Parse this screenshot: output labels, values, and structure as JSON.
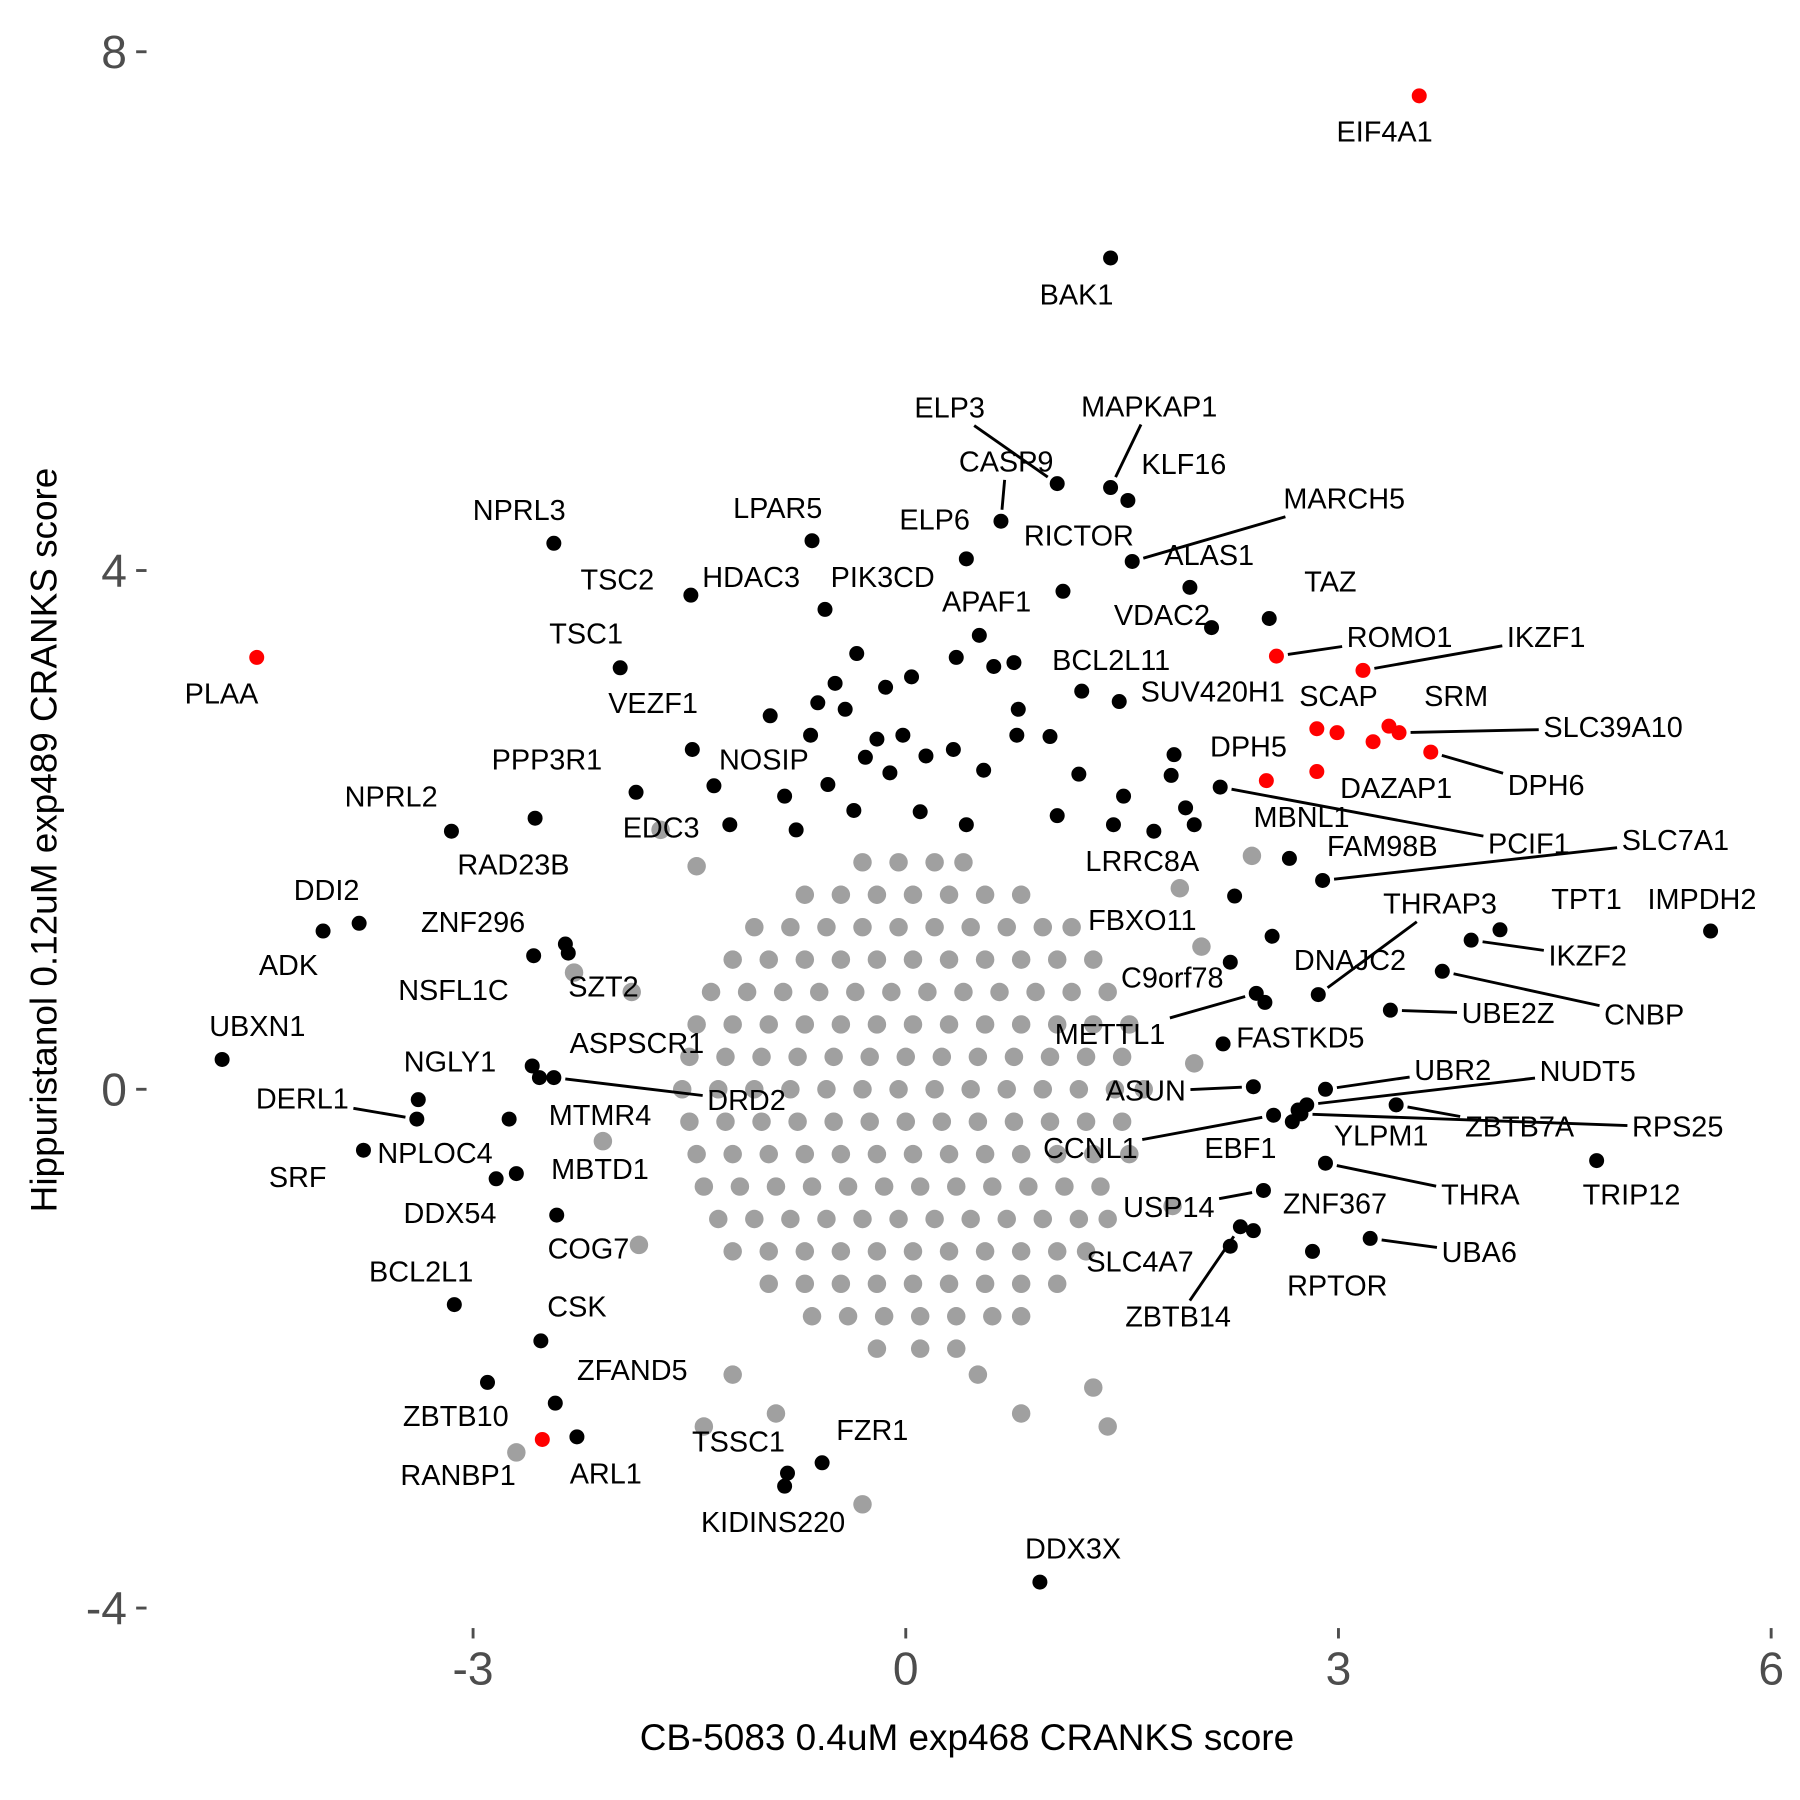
{
  "chart_data": {
    "type": "scatter",
    "x_label": "CB-5083 0.4uM exp468 CRANKS score",
    "y_label": "Hippuristanol 0.12uM exp489 CRANKS score",
    "xlim": [
      -5.3,
      6.1
    ],
    "ylim": [
      -4.15,
      8.15
    ],
    "xticks": [
      -3,
      0,
      3,
      6
    ],
    "yticks": [
      -4,
      0,
      4,
      8
    ],
    "series": [
      {
        "color": "#a0a0a0",
        "x": [
          -0.3,
          -0.05,
          0.2,
          0.4,
          -0.7,
          -0.45,
          -0.2,
          0.05,
          0.3,
          0.55,
          0.8,
          -1.05,
          -0.8,
          -0.55,
          -0.3,
          -0.05,
          0.2,
          0.45,
          0.7,
          0.95,
          1.15,
          -1.2,
          -0.95,
          -0.7,
          -0.45,
          -0.2,
          0.05,
          0.3,
          0.55,
          0.8,
          1.05,
          1.3,
          -1.35,
          -1.1,
          -0.85,
          -0.6,
          -0.35,
          -0.1,
          0.15,
          0.4,
          0.65,
          0.9,
          1.15,
          1.4,
          -1.45,
          -1.2,
          -0.95,
          -0.7,
          -0.45,
          -0.2,
          0.05,
          0.3,
          0.55,
          0.8,
          1.05,
          1.3,
          1.55,
          -1.5,
          -1.25,
          -1.0,
          -0.75,
          -0.5,
          -0.25,
          0,
          0.25,
          0.5,
          0.75,
          1.0,
          1.25,
          1.5,
          -1.55,
          -1.3,
          -1.05,
          -0.8,
          -0.55,
          -0.3,
          -0.05,
          0.2,
          0.45,
          0.7,
          0.95,
          1.2,
          1.45,
          1.65,
          -1.5,
          -1.25,
          -1.0,
          -0.75,
          -0.5,
          -0.25,
          0,
          0.25,
          0.5,
          0.75,
          1.0,
          1.25,
          1.5,
          -1.45,
          -1.2,
          -0.95,
          -0.7,
          -0.45,
          -0.2,
          0.05,
          0.3,
          0.55,
          0.8,
          1.05,
          1.3,
          1.55,
          -1.4,
          -1.15,
          -0.9,
          -0.65,
          -0.4,
          -0.15,
          0.1,
          0.35,
          0.6,
          0.85,
          1.1,
          1.35,
          -1.3,
          -1.05,
          -0.8,
          -0.55,
          -0.3,
          -0.05,
          0.2,
          0.45,
          0.7,
          0.95,
          1.2,
          1.4,
          -1.2,
          -0.95,
          -0.7,
          -0.45,
          -0.2,
          0.05,
          0.3,
          0.55,
          0.8,
          1.05,
          1.25,
          -0.95,
          -0.7,
          -0.45,
          -0.2,
          0.05,
          0.3,
          0.55,
          0.8,
          1.05,
          -0.65,
          -0.4,
          -0.15,
          0.1,
          0.35,
          0.6,
          0.8,
          -0.2,
          0.1,
          0.35,
          -1.45,
          1.9,
          2.05,
          -1.9,
          -2.1,
          -1.85,
          1.85,
          2.0,
          -1.2,
          -0.9,
          0.5,
          0.8,
          -2.7,
          -0.3,
          1.4,
          -2.3,
          2.4,
          -1.7,
          1.3,
          -1.4
        ],
        "y": [
          1.75,
          1.75,
          1.75,
          1.75,
          1.5,
          1.5,
          1.5,
          1.5,
          1.5,
          1.5,
          1.5,
          1.25,
          1.25,
          1.25,
          1.25,
          1.25,
          1.25,
          1.25,
          1.25,
          1.25,
          1.25,
          1,
          1,
          1,
          1,
          1,
          1,
          1,
          1,
          1,
          1,
          1,
          0.75,
          0.75,
          0.75,
          0.75,
          0.75,
          0.75,
          0.75,
          0.75,
          0.75,
          0.75,
          0.75,
          0.75,
          0.5,
          0.5,
          0.5,
          0.5,
          0.5,
          0.5,
          0.5,
          0.5,
          0.5,
          0.5,
          0.5,
          0.5,
          0.5,
          0.25,
          0.25,
          0.25,
          0.25,
          0.25,
          0.25,
          0.25,
          0.25,
          0.25,
          0.25,
          0.25,
          0.25,
          0.25,
          0,
          0,
          0,
          0,
          0,
          0,
          0,
          0,
          0,
          0,
          0,
          0,
          0,
          0,
          -0.25,
          -0.25,
          -0.25,
          -0.25,
          -0.25,
          -0.25,
          -0.25,
          -0.25,
          -0.25,
          -0.25,
          -0.25,
          -0.25,
          -0.25,
          -0.5,
          -0.5,
          -0.5,
          -0.5,
          -0.5,
          -0.5,
          -0.5,
          -0.5,
          -0.5,
          -0.5,
          -0.5,
          -0.5,
          -0.5,
          -0.75,
          -0.75,
          -0.75,
          -0.75,
          -0.75,
          -0.75,
          -0.75,
          -0.75,
          -0.75,
          -0.75,
          -0.75,
          -0.75,
          -1,
          -1,
          -1,
          -1,
          -1,
          -1,
          -1,
          -1,
          -1,
          -1,
          -1,
          -1,
          -1.25,
          -1.25,
          -1.25,
          -1.25,
          -1.25,
          -1.25,
          -1.25,
          -1.25,
          -1.25,
          -1.25,
          -1.25,
          -1.5,
          -1.5,
          -1.5,
          -1.5,
          -1.5,
          -1.5,
          -1.5,
          -1.5,
          -1.5,
          -1.75,
          -1.75,
          -1.75,
          -1.75,
          -1.75,
          -1.75,
          -1.75,
          -2,
          -2,
          -2,
          1.72,
          1.55,
          1.1,
          0.75,
          -0.4,
          -1.2,
          -0.9,
          0.2,
          -2.2,
          -2.5,
          -2.2,
          -2.5,
          -2.8,
          -3.2,
          -2.6,
          0.9,
          1.8,
          2.0,
          -2.3,
          -2.6
        ]
      },
      {
        "color": "#000000",
        "labels": [
          "BAK1",
          "ELP3",
          "MAPKAP1",
          "KLF16",
          "CASP9",
          "RICTOR",
          "ELP6",
          "MARCH5",
          "ALAS1",
          "VDAC2",
          "TAZ",
          "NPRL3",
          "LPAR5",
          "TSC2",
          "HDAC3",
          "PIK3CD",
          "APAF1",
          "TSC1",
          "VEZF1",
          "NOSIP",
          "PPP3R1",
          "NPRL2",
          "RAD23B",
          "EDC3",
          "DDI2",
          "ADK",
          "ZNF296",
          "NSFL1C",
          "SZT2",
          "UBXN1",
          "NGLY1",
          "ASPSCR1",
          "DRD2",
          "MTMR4",
          "DERL1",
          "NPLOC4",
          "SRF",
          "DDX54",
          "MBTD1",
          "COG7",
          "CSK",
          "ZFAND5",
          "BCL2L1",
          "ZBTB10",
          "ARL1",
          "TSSC1",
          "KIDINS220",
          "FZR1",
          "DDX3X",
          "BCL2L11",
          "SUV420H1",
          "DPH5",
          "PCIF1",
          "FAM98B",
          "SLC7A1",
          "LRRC8A",
          "FBXO11",
          "THRAP3",
          "DNAJC2",
          "TPT1",
          "IMPDH2",
          "IKZF2",
          "CNBP",
          "C9orf78",
          "METTL1",
          "FASTKD5",
          "UBE2Z",
          "ASUN",
          "UBR2",
          "NUDT5",
          "ZBTB7A",
          "RPS25",
          "CCNL1",
          "EBF1",
          "YLPM1",
          "THRA",
          "TRIP12",
          "USP14",
          "ZNF367",
          "SLC4A7",
          "ZBTB14",
          "RPTOR",
          "UBA6",
          null,
          null,
          null,
          null,
          null,
          null,
          null,
          null,
          null,
          null,
          null,
          null,
          null,
          null,
          null,
          null,
          null,
          null,
          null,
          null,
          null,
          null,
          null,
          null,
          null,
          null,
          null,
          null,
          null,
          null,
          null,
          null,
          null,
          null
        ],
        "x": [
          1.42,
          1.05,
          1.42,
          1.54,
          0.66,
          1.09,
          0.42,
          1.57,
          1.97,
          2.12,
          2.52,
          -2.44,
          -0.65,
          -1.49,
          -0.56,
          -0.34,
          0.51,
          -1.98,
          -1.48,
          -1.33,
          -1.87,
          -3.15,
          -2.57,
          -1.22,
          -3.79,
          -4.04,
          -2.36,
          -2.58,
          -2.34,
          -4.74,
          -3.38,
          -2.59,
          -2.44,
          -2.54,
          -3.39,
          -2.75,
          -3.76,
          -2.84,
          -2.7,
          -2.42,
          -2.53,
          -2.43,
          -3.13,
          -2.9,
          -2.28,
          -0.82,
          -0.84,
          -0.58,
          0.93,
          1.22,
          1.48,
          1.86,
          2.18,
          2.66,
          2.89,
          2.28,
          2.54,
          2.86,
          2.49,
          4.12,
          5.58,
          3.92,
          3.72,
          2.25,
          2.43,
          2.2,
          3.36,
          2.41,
          2.91,
          2.78,
          3.4,
          2.74,
          2.55,
          2.68,
          2.72,
          2.91,
          4.79,
          2.48,
          2.41,
          2.25,
          2.32,
          2.82,
          3.22,
          0.35,
          0.75,
          0.61,
          0.04,
          -0.14,
          -0.49,
          -0.61,
          -0.94,
          -0.42,
          -0.2,
          -0.02,
          -0.11,
          -0.28,
          -0.66,
          0.14,
          0.33,
          0.54,
          0.77,
          1.0,
          1.2,
          1.51,
          1.05,
          1.44,
          1.72,
          2.0,
          -0.84,
          -0.54,
          -0.36,
          0.1,
          0.42,
          0.78,
          1.84,
          1.94,
          -0.76
        ],
        "y": [
          6.41,
          4.67,
          4.64,
          4.54,
          4.38,
          3.84,
          4.09,
          4.07,
          3.87,
          3.56,
          3.63,
          4.21,
          4.23,
          3.81,
          3.7,
          3.36,
          3.5,
          3.25,
          2.62,
          2.34,
          2.29,
          1.99,
          2.09,
          2.04,
          1.28,
          1.22,
          1.12,
          1.03,
          1.05,
          0.23,
          -0.08,
          0.18,
          0.09,
          0.09,
          -0.23,
          -0.23,
          -0.47,
          -0.69,
          -0.65,
          -0.97,
          -1.94,
          -2.42,
          -1.66,
          -2.26,
          -2.68,
          -2.96,
          -3.06,
          -2.88,
          -3.8,
          3.07,
          2.99,
          2.58,
          2.33,
          1.78,
          1.61,
          1.49,
          1.18,
          0.73,
          0.67,
          1.23,
          1.22,
          1.15,
          0.91,
          0.98,
          0.74,
          0.35,
          0.61,
          0.02,
          0.0,
          -0.12,
          -0.12,
          -0.19,
          -0.2,
          -0.25,
          -0.16,
          -0.57,
          -0.55,
          -0.78,
          -1.09,
          -1.21,
          -1.06,
          -1.25,
          -1.15,
          3.33,
          3.29,
          3.26,
          3.18,
          3.1,
          3.13,
          2.98,
          2.88,
          2.93,
          2.7,
          2.73,
          2.44,
          2.56,
          2.73,
          2.57,
          2.62,
          2.46,
          2.73,
          2.72,
          2.43,
          2.26,
          2.11,
          2.04,
          1.99,
          2.04,
          2.26,
          2.35,
          2.15,
          2.14,
          2.04,
          2.93,
          2.42,
          2.17,
          2.0
        ]
      },
      {
        "color": "#ff0000",
        "labels": [
          "EIF4A1",
          "PLAA",
          "ROMO1",
          "IKZF1",
          "SCAP",
          null,
          "SRM",
          "SLC39A10",
          null,
          "DPH6",
          "DAZAP1",
          "MBNL1",
          "RANBP1"
        ],
        "x": [
          3.56,
          -4.5,
          2.57,
          3.17,
          2.85,
          2.99,
          3.35,
          3.42,
          3.24,
          3.64,
          2.85,
          2.5,
          -2.52
        ],
        "y": [
          7.66,
          3.33,
          3.34,
          3.23,
          2.78,
          2.75,
          2.8,
          2.75,
          2.68,
          2.6,
          2.45,
          2.38,
          -2.7
        ]
      }
    ]
  }
}
